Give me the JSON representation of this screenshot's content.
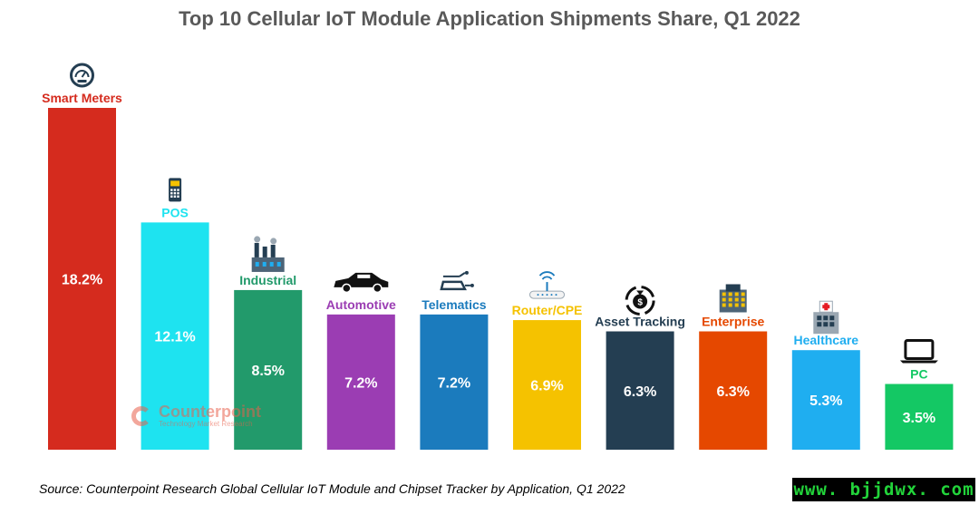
{
  "chart_data": {
    "type": "bar",
    "title": "Top 10 Cellular IoT Module Application Shipments Share, Q1 2022",
    "categories": [
      "Smart Meters",
      "POS",
      "Industrial",
      "Automotive",
      "Telematics",
      "Router/CPE",
      "Asset Tracking",
      "Enterprise",
      "Healthcare",
      "PC"
    ],
    "values": [
      18.2,
      12.1,
      8.5,
      7.2,
      7.2,
      6.9,
      6.3,
      6.3,
      5.3,
      3.5
    ],
    "data_labels": [
      "18.2%",
      "12.1%",
      "8.5%",
      "7.2%",
      "7.2%",
      "6.9%",
      "6.3%",
      "6.3%",
      "5.3%",
      "3.5%"
    ],
    "colors": [
      "#d52b1e",
      "#1ee3f0",
      "#229a6b",
      "#9b3db3",
      "#1b7bbd",
      "#f5c200",
      "#243e52",
      "#e54800",
      "#1faef0",
      "#14c864"
    ],
    "label_colors": [
      "#d52b1e",
      "#1ee3f0",
      "#229a6b",
      "#9b3db3",
      "#1b7bbd",
      "#f5c200",
      "#243e52",
      "#e54800",
      "#1faef0",
      "#14c864"
    ],
    "icons": [
      "meter-gauge-icon",
      "pos-terminal-icon",
      "factory-icon",
      "car-icon",
      "connected-car-icon",
      "wifi-router-icon",
      "money-bag-cycle-icon",
      "office-building-icon",
      "hospital-icon",
      "laptop-icon"
    ],
    "xlabel": "",
    "ylabel": "",
    "ylim": [
      0,
      18.2
    ],
    "grid": false,
    "legend": "none"
  },
  "source": "Source: Counterpoint Research Global Cellular IoT Module and Chipset Tracker by Application, Q1 2022",
  "logo": {
    "name": "Counterpoint",
    "tagline": "Technology Market Research"
  },
  "watermark": "www. bjjdwx. com"
}
